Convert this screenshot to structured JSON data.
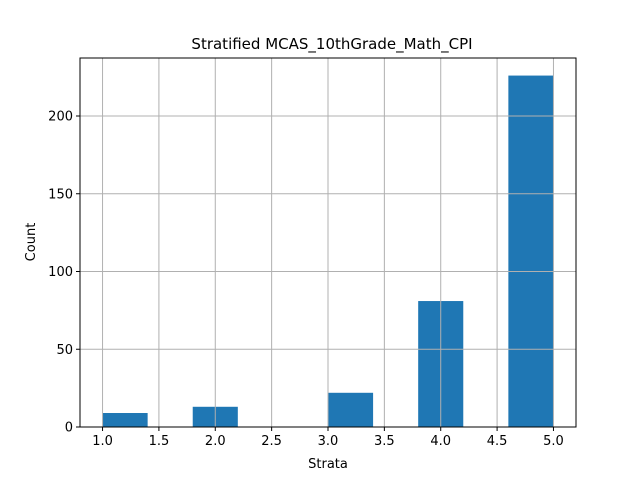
{
  "chart_data": {
    "type": "bar",
    "title": "Stratified MCAS_10thGrade_Math_CPI",
    "xlabel": "Strata",
    "ylabel": "Count",
    "xlim": [
      0.8,
      5.2
    ],
    "ylim": [
      0,
      237.3
    ],
    "x_ticks": [
      1.0,
      1.5,
      2.0,
      2.5,
      3.0,
      3.5,
      4.0,
      4.5,
      5.0
    ],
    "x_tick_labels": [
      "1.0",
      "1.5",
      "2.0",
      "2.5",
      "3.0",
      "3.5",
      "4.0",
      "4.5",
      "5.0"
    ],
    "y_ticks": [
      0,
      50,
      100,
      150,
      200
    ],
    "y_tick_labels": [
      "0",
      "50",
      "100",
      "150",
      "200"
    ],
    "bins": [
      {
        "x0": 1.0,
        "x1": 1.4,
        "count": 9
      },
      {
        "x0": 1.4,
        "x1": 1.8,
        "count": 0
      },
      {
        "x0": 1.8,
        "x1": 2.2,
        "count": 13
      },
      {
        "x0": 2.2,
        "x1": 2.6,
        "count": 0
      },
      {
        "x0": 2.6,
        "x1": 3.0,
        "count": 0
      },
      {
        "x0": 3.0,
        "x1": 3.4,
        "count": 22
      },
      {
        "x0": 3.4,
        "x1": 3.8,
        "count": 0
      },
      {
        "x0": 3.8,
        "x1": 4.2,
        "count": 81
      },
      {
        "x0": 4.2,
        "x1": 4.6,
        "count": 0
      },
      {
        "x0": 4.6,
        "x1": 5.0,
        "count": 226
      }
    ],
    "grid": true,
    "bar_color": "#1f77b4",
    "grid_color": "#b0b0b0"
  }
}
